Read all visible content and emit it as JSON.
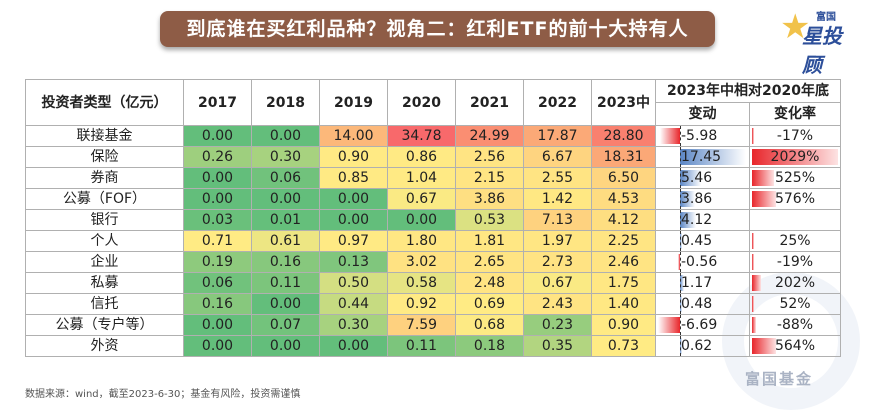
{
  "title": "到底谁在买红利品种？视角二：红利ETF的前十大持有人",
  "logo": {
    "small": "富国",
    "big": "星投顾"
  },
  "table": {
    "header_name": "投资者类型（亿元）",
    "years": [
      "2017",
      "2018",
      "2019",
      "2020",
      "2021",
      "2022",
      "2023中"
    ],
    "group_header": "2023年中相对2020年底",
    "sub_headers": [
      "变动",
      "变化率"
    ],
    "rows": [
      {
        "name": "联接基金",
        "values": [
          "0.00",
          "0.00",
          "14.00",
          "34.78",
          "24.99",
          "17.87",
          "28.80"
        ],
        "change": "-5.98",
        "rate": "-17%"
      },
      {
        "name": "保险",
        "values": [
          "0.26",
          "0.30",
          "0.90",
          "0.86",
          "2.56",
          "6.67",
          "18.31"
        ],
        "change": "17.45",
        "rate": "2029%"
      },
      {
        "name": "券商",
        "values": [
          "0.00",
          "0.06",
          "0.85",
          "1.04",
          "2.15",
          "2.55",
          "6.50"
        ],
        "change": "5.46",
        "rate": "525%"
      },
      {
        "name": "公募（FOF）",
        "values": [
          "0.00",
          "0.00",
          "0.00",
          "0.67",
          "3.86",
          "1.42",
          "4.53"
        ],
        "change": "3.86",
        "rate": "576%"
      },
      {
        "name": "银行",
        "values": [
          "0.03",
          "0.01",
          "0.00",
          "0.00",
          "0.53",
          "7.13",
          "4.12"
        ],
        "change": "4.12",
        "rate": ""
      },
      {
        "name": "个人",
        "values": [
          "0.71",
          "0.61",
          "0.97",
          "1.80",
          "1.81",
          "1.97",
          "2.25"
        ],
        "change": "0.45",
        "rate": "25%"
      },
      {
        "name": "企业",
        "values": [
          "0.19",
          "0.16",
          "0.13",
          "3.02",
          "2.65",
          "2.73",
          "2.46"
        ],
        "change": "-0.56",
        "rate": "-19%"
      },
      {
        "name": "私募",
        "values": [
          "0.06",
          "0.11",
          "0.50",
          "0.58",
          "2.48",
          "0.67",
          "1.75"
        ],
        "change": "1.17",
        "rate": "202%"
      },
      {
        "name": "信托",
        "values": [
          "0.16",
          "0.00",
          "0.44",
          "0.92",
          "0.69",
          "2.43",
          "1.40"
        ],
        "change": "0.48",
        "rate": "52%"
      },
      {
        "name": "公募（专户等）",
        "values": [
          "0.00",
          "0.07",
          "0.30",
          "7.59",
          "0.68",
          "0.23",
          "0.90"
        ],
        "change": "-6.69",
        "rate": "-88%"
      },
      {
        "name": "外资",
        "values": [
          "0.00",
          "0.00",
          "0.00",
          "0.11",
          "0.18",
          "0.35",
          "0.73"
        ],
        "change": "0.62",
        "rate": "564%"
      }
    ]
  },
  "colors": {
    "low": "#63be7b",
    "mid": "#ffeb84",
    "high": "#f8696b",
    "bar_pos": "#5b86c5",
    "bar_neg": "#e8262b",
    "banner": "#8e5c46"
  },
  "footer": "数据来源：wind，截至2023-6-30；基金有风险，投资需谨慎",
  "watermark": "富国基金"
}
